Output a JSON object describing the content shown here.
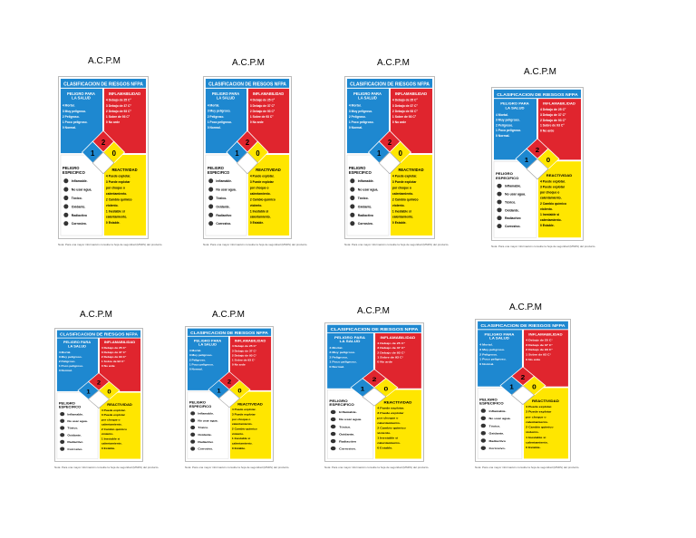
{
  "label": "A.C.P.M",
  "card": {
    "title": "CLASIFICACION DE RIESGOS NFPA",
    "health": {
      "title1": "PELIGRO PARA",
      "title2": "LA SALUD",
      "lines": [
        "4 Mortal.",
        "3 Muy peligroso.",
        "2 Peligroso.",
        "1 Poco peligroso.",
        "0 Normal."
      ]
    },
    "flammability": {
      "title": "INFLAMABILIDAD",
      "lines": [
        "4 Debajo de 25 C°",
        "3 Debajo de 37 C°",
        "2 Debajo de 93 C°",
        "1 Sobre de 93 C°",
        "0 No arde"
      ]
    },
    "specific": {
      "title1": "PELIGRO",
      "title2": "ESPECIFICO",
      "items": [
        "Inflamable.",
        "No usar agua.",
        "Tóxico.",
        "Oxidante.",
        "Radiactivo",
        "Corrosivo."
      ]
    },
    "reactivity": {
      "title": "REACTIVIDAD",
      "lines": [
        "4 Puede explotar.",
        "3 Puede explotar",
        "por choque o",
        "calentamiento.",
        "2 Cambio químico",
        "violento.",
        "1 Inestable si",
        "calentamiento.",
        "0 Estable."
      ]
    },
    "diamond": {
      "health": "1",
      "flammability": "2",
      "reactivity": "0",
      "special": ""
    },
    "note": "Nota: Para una mayor información consulte la hoja de seguridad (MSDS) del producto."
  },
  "colors": {
    "blue": "#1e88d0",
    "red": "#e0252e",
    "yellow": "#ffe600",
    "header": "#1e88d0"
  }
}
